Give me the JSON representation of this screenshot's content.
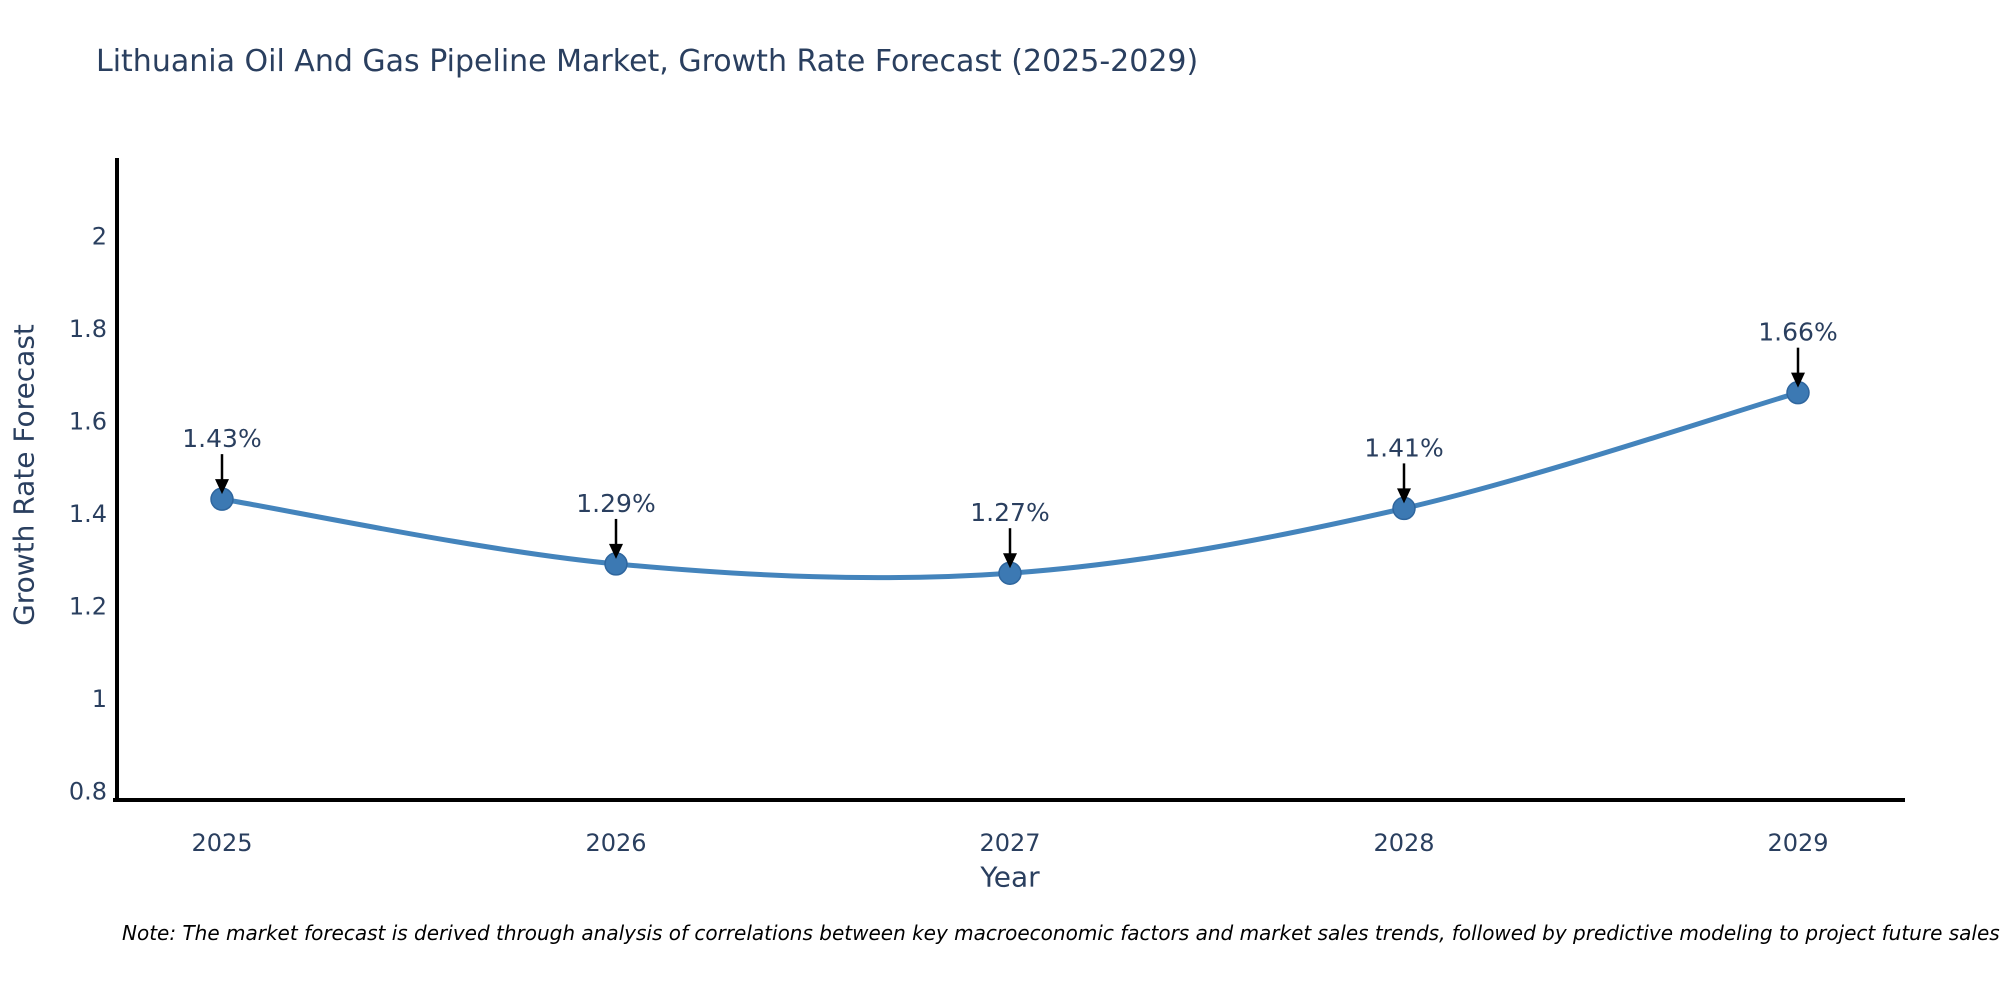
{
  "title": "Lithuania Oil And Gas Pipeline Market, Growth Rate Forecast (2025-2029)",
  "note": "Note: The market forecast is derived through analysis of correlations between key macroeconomic factors and market sales trends, followed by predictive modeling to project future sales",
  "colors": {
    "title_text": "#2a3f5f",
    "note_text": "#000000"
  },
  "chart_data": {
    "type": "line",
    "title": "Lithuania Oil And Gas Pipeline Market, Growth Rate Forecast (2025-2029)",
    "categories": [
      "2025",
      "2026",
      "2027",
      "2028",
      "2029"
    ],
    "series": [
      {
        "name": "Growth Rate Forecast",
        "values": [
          1.43,
          1.29,
          1.27,
          1.41,
          1.66
        ]
      }
    ],
    "point_labels": [
      "1.43%",
      "1.29%",
      "1.27%",
      "1.41%",
      "1.66%"
    ],
    "xlabel": "Year",
    "ylabel": "Growth Rate Forecast",
    "ylim": [
      0.78,
      2.167
    ],
    "yticks": [
      0.8,
      1,
      1.2,
      1.4,
      1.6,
      1.8,
      2
    ],
    "ytick_labels": [
      "0.8",
      "1",
      "1.2",
      "1.4",
      "1.6",
      "1.8",
      "2"
    ],
    "grid": false,
    "legend_position": "none",
    "line_shape": "spline",
    "colors": {
      "line": "#4484bc",
      "marker": "#3c79b3",
      "marker_edge": "#2f669e",
      "axis": "#000000",
      "tick_text": "#2a3f5f",
      "annotation_text": "#2a3f5f",
      "arrow": "#000000"
    }
  }
}
